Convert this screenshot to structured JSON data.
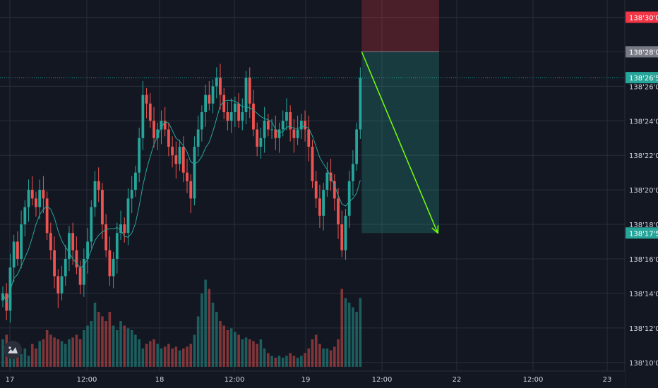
{
  "chart_data": {
    "type": "candlestick",
    "title": "",
    "xlabel": "",
    "ylabel": "",
    "ylim": [
      138.095,
      138.31
    ],
    "grid": true,
    "x_ticks": [
      "17",
      "12:00",
      "18",
      "12:00",
      "19",
      "12:00",
      "22",
      "12:00",
      "23"
    ],
    "y_ticks": [
      "138'10'0",
      "138'12'0",
      "138'14'0",
      "138'16'0",
      "138'18'0",
      "138'20'0",
      "138'22'0",
      "138'24'0",
      "138'26'0",
      "138'28'0",
      "138'30'0"
    ],
    "y_tick_values": [
      138.1,
      138.12,
      138.14,
      138.16,
      138.18,
      138.2,
      138.22,
      138.24,
      138.26,
      138.28,
      138.3
    ],
    "price_tags": [
      {
        "label": "138'30'0",
        "value": 138.3,
        "color": "#f23645"
      },
      {
        "label": "138'28'0",
        "value": 138.28,
        "color": "#787b86"
      },
      {
        "label": "138'26'5",
        "value": 138.265,
        "color": "#26a69a"
      },
      {
        "label": "138'17'5",
        "value": 138.175,
        "color": "#26a69a"
      }
    ],
    "last_price": 138.265,
    "short_position": {
      "entry": 138.28,
      "stop": 138.31,
      "target": 138.175,
      "start_bar": 97,
      "end_bar": 118
    },
    "arrow": {
      "from": [
        97,
        138.28
      ],
      "to": [
        118,
        138.175
      ],
      "color": "#76ff03"
    },
    "ma_color": "#26a69a",
    "up_color": "#26a69a",
    "down_color": "#ef5350",
    "closes": [
      138.14,
      138.13,
      138.155,
      138.17,
      138.16,
      138.18,
      138.19,
      138.2,
      138.195,
      138.19,
      138.2,
      138.195,
      138.175,
      138.165,
      138.15,
      138.14,
      138.15,
      138.16,
      138.175,
      138.165,
      138.155,
      138.145,
      138.16,
      138.17,
      138.19,
      138.205,
      138.2,
      138.18,
      138.165,
      138.15,
      138.16,
      138.175,
      138.18,
      138.175,
      138.195,
      138.2,
      138.21,
      138.23,
      138.255,
      138.25,
      138.24,
      138.23,
      138.235,
      138.24,
      138.235,
      138.225,
      138.22,
      138.215,
      138.225,
      138.21,
      138.205,
      138.195,
      138.225,
      138.235,
      138.245,
      138.255,
      138.25,
      138.26,
      138.265,
      138.255,
      138.245,
      138.24,
      138.245,
      138.25,
      138.24,
      138.245,
      138.265,
      138.25,
      138.235,
      138.225,
      138.23,
      138.24,
      138.235,
      138.235,
      138.23,
      138.235,
      138.24,
      138.245,
      138.235,
      138.23,
      138.235,
      138.24,
      138.235,
      138.225,
      138.205,
      138.195,
      138.185,
      138.2,
      138.21,
      138.205,
      138.195,
      138.18,
      138.165,
      138.185,
      138.205,
      138.215,
      138.235,
      138.265
    ],
    "volumes": [
      0.3,
      0.35,
      0.2,
      0.15,
      0.18,
      0.14,
      0.2,
      0.12,
      0.25,
      0.2,
      0.28,
      0.3,
      0.4,
      0.35,
      0.32,
      0.3,
      0.28,
      0.25,
      0.3,
      0.32,
      0.35,
      0.3,
      0.4,
      0.45,
      0.5,
      0.7,
      0.6,
      0.55,
      0.5,
      0.6,
      0.45,
      0.4,
      0.5,
      0.45,
      0.42,
      0.4,
      0.35,
      0.3,
      0.2,
      0.25,
      0.28,
      0.3,
      0.25,
      0.2,
      0.22,
      0.25,
      0.2,
      0.22,
      0.18,
      0.2,
      0.22,
      0.25,
      0.35,
      0.55,
      0.8,
      0.95,
      0.85,
      0.7,
      0.6,
      0.5,
      0.45,
      0.4,
      0.42,
      0.38,
      0.35,
      0.3,
      0.32,
      0.3,
      0.28,
      0.25,
      0.3,
      0.2,
      0.15,
      0.12,
      0.1,
      0.12,
      0.1,
      0.12,
      0.15,
      0.12,
      0.1,
      0.12,
      0.15,
      0.2,
      0.3,
      0.35,
      0.25,
      0.2,
      0.2,
      0.18,
      0.22,
      0.3,
      0.85,
      0.75,
      0.7,
      0.65,
      0.6,
      0.75
    ]
  }
}
